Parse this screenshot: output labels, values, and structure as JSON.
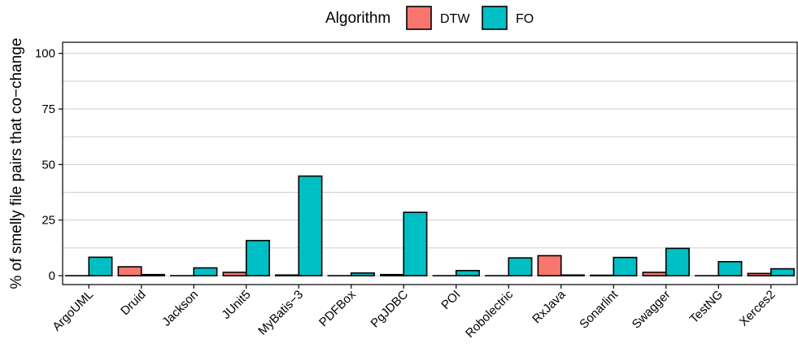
{
  "chart_data": {
    "type": "bar",
    "title": "",
    "xlabel": "",
    "ylabel": "% of smelly file pairs that co−change",
    "ylim": [
      -4,
      105
    ],
    "yticks": [
      0,
      25,
      50,
      75,
      100
    ],
    "grid": true,
    "legend": {
      "title": "Algorithm",
      "position": "top-center"
    },
    "categories": [
      "ArgoUML",
      "Druid",
      "Jackson",
      "JUnit5",
      "MyBatis−3",
      "PDFBox",
      "PgJDBC",
      "POI",
      "Robolectric",
      "RxJava",
      "Sonarlint",
      "Swagger",
      "TestNG",
      "Xerces2"
    ],
    "series": [
      {
        "name": "DTW",
        "color": "#F8766D",
        "values": [
          0,
          4.0,
          0,
          1.5,
          0.3,
          0,
          0.5,
          0,
          0,
          9.0,
          0.2,
          1.5,
          0,
          1.0
        ]
      },
      {
        "name": "FO",
        "color": "#00BFC4",
        "values": [
          8.3,
          0.5,
          3.5,
          15.8,
          44.8,
          1.2,
          28.5,
          2.3,
          8.0,
          0.3,
          8.2,
          12.3,
          6.3,
          3.1
        ]
      }
    ]
  }
}
